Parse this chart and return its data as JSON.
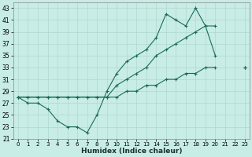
{
  "title": "",
  "xlabel": "Humidex (Indice chaleur)",
  "ylabel": "",
  "bg_color": "#c8ece6",
  "line_color": "#1a6b5a",
  "grid_color": "#b0d8d0",
  "xlim": [
    -0.5,
    23.5
  ],
  "ylim": [
    21,
    44
  ],
  "yticks": [
    21,
    23,
    25,
    27,
    29,
    31,
    33,
    35,
    37,
    39,
    41,
    43
  ],
  "xticks": [
    0,
    1,
    2,
    3,
    4,
    5,
    6,
    7,
    8,
    9,
    10,
    11,
    12,
    13,
    14,
    15,
    16,
    17,
    18,
    19,
    20,
    21,
    22,
    23
  ],
  "series": [
    {
      "x": [
        0,
        1,
        2,
        3,
        4,
        5,
        6,
        7,
        8,
        9,
        10,
        11,
        12,
        13,
        14,
        15,
        16,
        17,
        18,
        19,
        20,
        21,
        22,
        23
      ],
      "y": [
        28,
        27,
        27,
        26,
        24,
        23,
        23,
        22,
        25,
        29,
        32,
        34,
        35,
        36,
        38,
        42,
        41,
        40,
        43,
        40,
        35,
        null,
        null,
        33
      ]
    },
    {
      "x": [
        0,
        1,
        2,
        3,
        4,
        5,
        6,
        7,
        8,
        9,
        10,
        11,
        12,
        13,
        14,
        15,
        16,
        17,
        18,
        19,
        20,
        21,
        22,
        23
      ],
      "y": [
        28,
        28,
        28,
        28,
        28,
        28,
        28,
        28,
        28,
        28,
        30,
        31,
        32,
        33,
        35,
        36,
        37,
        38,
        39,
        40,
        40,
        null,
        null,
        33
      ]
    },
    {
      "x": [
        0,
        1,
        2,
        3,
        4,
        5,
        6,
        7,
        8,
        9,
        10,
        11,
        12,
        13,
        14,
        15,
        16,
        17,
        18,
        19,
        20,
        21,
        22,
        23
      ],
      "y": [
        28,
        28,
        28,
        28,
        28,
        28,
        28,
        28,
        28,
        28,
        28,
        29,
        29,
        30,
        30,
        31,
        31,
        32,
        32,
        33,
        33,
        null,
        null,
        33
      ]
    }
  ]
}
